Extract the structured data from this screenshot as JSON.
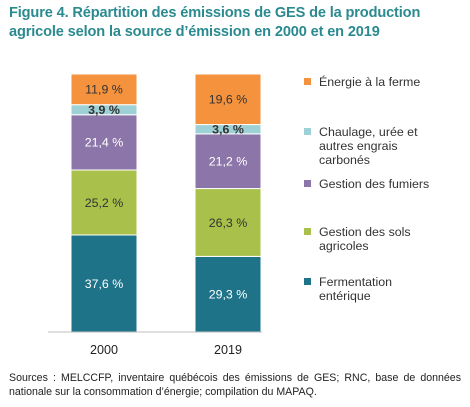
{
  "title": "Figure 4. Répartition des émissions de GES de la production agricole selon la source d’émission en 2000 et en 2019",
  "sources": "Sources : MELCCFP, inventaire québécois des émissions de GES; RNC, base de données nationale sur la consommation d’énergie; compilation du MAPAQ.",
  "chart_data": {
    "type": "bar",
    "stacked": true,
    "categories": [
      "2000",
      "2019"
    ],
    "ylim": [
      0,
      100
    ],
    "series": [
      {
        "name": "Fermentation entérique",
        "legend_lines": [
          "Fermentation",
          "entérique"
        ],
        "color": "#1e7389",
        "label_color": "#ffffff",
        "label_bold": false,
        "values": [
          37.6,
          29.3
        ],
        "labels": [
          "37,6 %",
          "29,3 %"
        ]
      },
      {
        "name": "Gestion des sols agricoles",
        "legend_lines": [
          "Gestion des sols",
          "agricoles"
        ],
        "color": "#a9c04a",
        "label_color": "#333333",
        "label_bold": false,
        "values": [
          25.2,
          26.3
        ],
        "labels": [
          "25,2 %",
          "26,3 %"
        ]
      },
      {
        "name": "Gestion des fumiers",
        "legend_lines": [
          "Gestion des fumiers"
        ],
        "color": "#8c75a8",
        "label_color": "#ffffff",
        "label_bold": false,
        "values": [
          21.4,
          21.2
        ],
        "labels": [
          "21,4 %",
          "21,2 %"
        ]
      },
      {
        "name": "Chaulage, urée et autres engrais carbonés",
        "legend_lines": [
          "Chaulage, urée et",
          "autres engrais",
          "carbonés"
        ],
        "color": "#9dd1d6",
        "label_color": "#333333",
        "label_bold": true,
        "values": [
          3.9,
          3.6
        ],
        "labels": [
          "3,9 %",
          "3,6 %"
        ]
      },
      {
        "name": "Énergie à la ferme",
        "legend_lines": [
          "Énergie à la ferme"
        ],
        "color": "#f5923e",
        "label_color": "#333333",
        "label_bold": false,
        "values": [
          11.9,
          19.6
        ],
        "labels": [
          "11,9 %",
          "19,6 %"
        ]
      }
    ],
    "legend_order": [
      4,
      3,
      2,
      1,
      0
    ],
    "legend_position": "right"
  }
}
